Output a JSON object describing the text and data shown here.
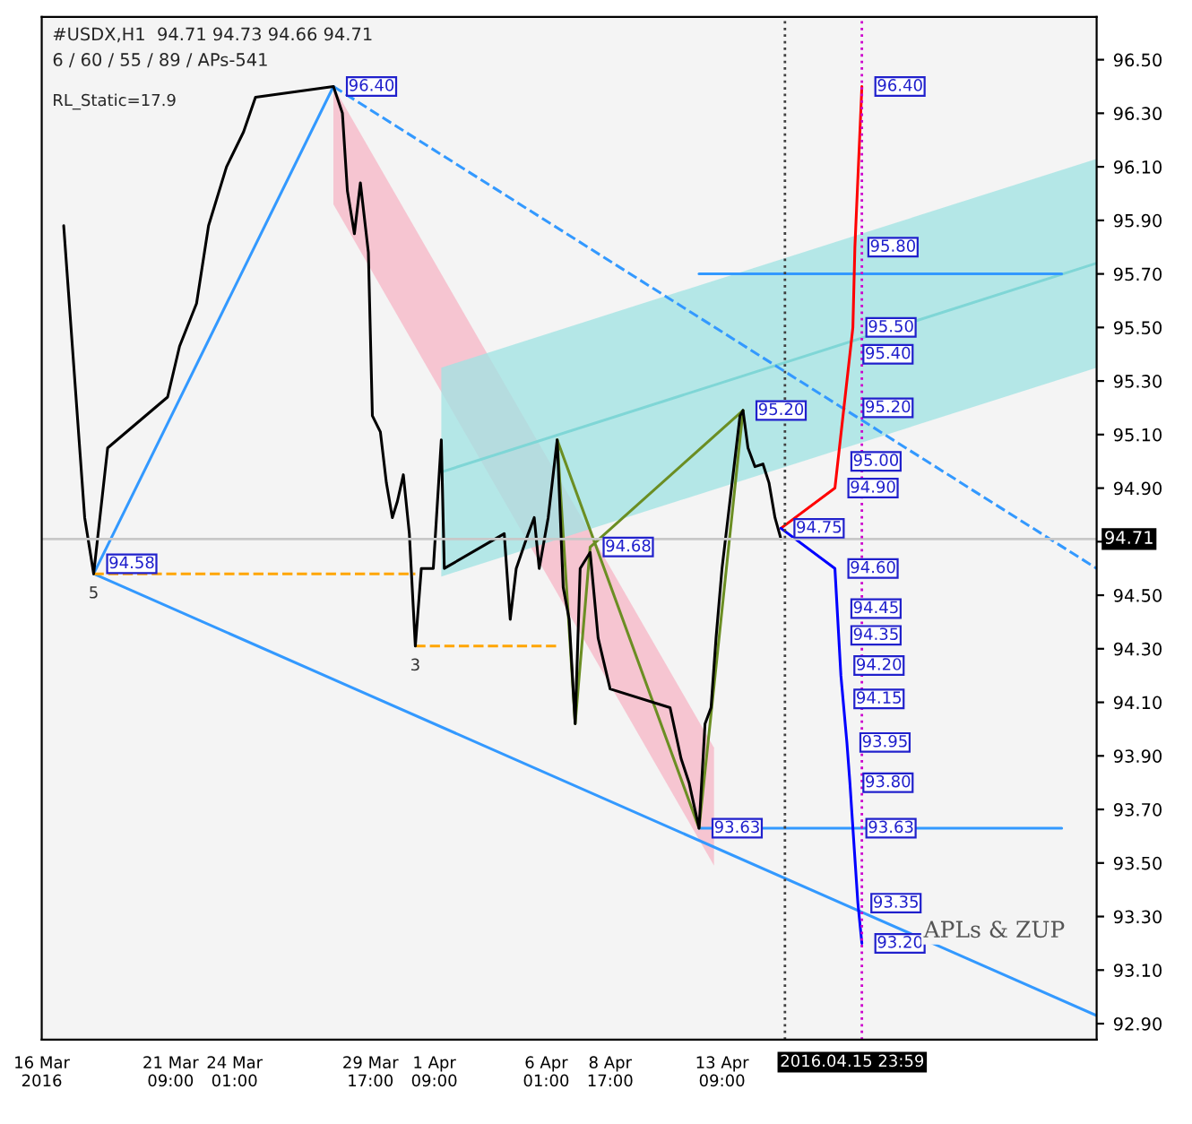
{
  "chart_data": {
    "type": "line",
    "title": "#USDX,H1  94.71 94.73 94.66 94.71",
    "subtitle": "6 / 60 / 55 / 89 / APs-541",
    "xlim": [
      "2016-03-16T00:00",
      "2016-04-29T00:00"
    ],
    "ylim": [
      92.84,
      96.66
    ],
    "xticks": [
      {
        "value": "2016-03-16T00:00",
        "label": "16 Mar 2016"
      },
      {
        "value": "2016-03-21T09:00",
        "label": "21 Mar 09:00"
      },
      {
        "value": "2016-03-24T01:00",
        "label": "24 Mar 01:00"
      },
      {
        "value": "2016-03-29T17:00",
        "label": "29 Mar 17:00"
      },
      {
        "value": "2016-04-01T09:00",
        "label": "1 Apr 09:00"
      },
      {
        "value": "2016-04-06T01:00",
        "label": "6 Apr 01:00"
      },
      {
        "value": "2016-04-08T17:00",
        "label": "8 Apr 17:00"
      },
      {
        "value": "2016-04-13T09:00",
        "label": "13 Apr 09:00"
      }
    ],
    "yticks": [
      {
        "value": 92.9,
        "label": "92.90"
      },
      {
        "value": 93.1,
        "label": "93.10"
      },
      {
        "value": 93.3,
        "label": "93.30"
      },
      {
        "value": 93.5,
        "label": "93.50"
      },
      {
        "value": 93.7,
        "label": "93.70"
      },
      {
        "value": 93.9,
        "label": "93.90"
      },
      {
        "value": 94.1,
        "label": "94.10"
      },
      {
        "value": 94.3,
        "label": "94.30"
      },
      {
        "value": 94.5,
        "label": "94.50"
      },
      {
        "value": 94.7,
        "label": null
      },
      {
        "value": 94.9,
        "label": "94.90"
      },
      {
        "value": 95.1,
        "label": "95.10"
      },
      {
        "value": 95.3,
        "label": "95.30"
      },
      {
        "value": 95.5,
        "label": "95.50"
      },
      {
        "value": 95.7,
        "label": "95.70"
      },
      {
        "value": 95.9,
        "label": "95.90"
      },
      {
        "value": 96.1,
        "label": "96.10"
      },
      {
        "value": 96.3,
        "label": "96.30"
      },
      {
        "value": 96.5,
        "label": "96.50"
      }
    ],
    "series": [
      {
        "type": "area",
        "color": "#f7b6c6",
        "x": [
          "2016-03-28T04:00",
          "2016-04-13T01:00"
        ],
        "values": [
          null,
          null
        ],
        "lower": [
          95.96,
          93.49
        ],
        "upper": [
          96.4,
          93.93
        ]
      },
      {
        "type": "area",
        "color": "#9fe3e3",
        "x": [
          "2016-04-01T16:00",
          "2016-04-29T00:00"
        ],
        "values": [
          null,
          null
        ],
        "lower": [
          94.57,
          95.35
        ],
        "upper": [
          95.35,
          96.13
        ]
      },
      {
        "color": "#7fd6d6",
        "x": [
          "2016-04-01T16:00",
          "2016-04-29T00:00"
        ],
        "values": [
          94.96,
          95.74
        ]
      },
      {
        "color": "#3399ff",
        "x": [
          "2016-03-18T04:00",
          "2016-04-29T00:00"
        ],
        "values": [
          94.58,
          92.93
        ]
      },
      {
        "color": "#3399ff",
        "x": [
          "2016-03-18T04:00",
          "2016-03-28T04:00"
        ],
        "values": [
          94.58,
          96.4
        ]
      },
      {
        "color": "#3399ff",
        "line_style": "dashed",
        "x": [
          "2016-03-28T04:00",
          "2016-04-29T00:00"
        ],
        "values": [
          96.4,
          94.6
        ]
      },
      {
        "color": "#3399ff",
        "x": [
          "2016-04-12T10:00",
          "2016-04-27T13:00"
        ],
        "values": [
          95.7,
          95.7
        ]
      },
      {
        "color": "#3399ff",
        "x": [
          "2016-04-12T10:00",
          "2016-04-27T13:00"
        ],
        "values": [
          93.63,
          93.63
        ]
      },
      {
        "color": "#ffa500",
        "line_style": "dashed",
        "x": [
          "2016-03-18T04:00",
          "2016-03-31T14:00"
        ],
        "values": [
          94.58,
          94.58
        ]
      },
      {
        "color": "#ffa500",
        "line_style": "dashed",
        "x": [
          "2016-03-31T14:00",
          "2016-04-06T12:00"
        ],
        "values": [
          94.31,
          94.31
        ]
      },
      {
        "color": "#6b8e23",
        "x": [
          "2016-04-06T12:00",
          "2016-04-07T06:00",
          "2016-04-07T21:00",
          "2016-04-14T06:00"
        ],
        "values": [
          95.08,
          94.02,
          94.68,
          95.19
        ]
      },
      {
        "color": "#6b8e23",
        "x": [
          "2016-04-06T12:00",
          "2016-04-12T10:00",
          "2016-04-14T06:00"
        ],
        "values": [
          95.08,
          93.63,
          95.19
        ]
      },
      {
        "color": "#000000",
        "x": [
          "2016-03-16T22:00",
          "2016-03-17T19:00",
          "2016-03-18T04:00",
          "2016-03-18T18:00",
          "2016-03-21T06:00",
          "2016-03-21T18:00",
          "2016-03-22T11:00",
          "2016-03-22T23:00",
          "2016-03-23T17:00",
          "2016-03-24T10:00",
          "2016-03-24T22:00",
          "2016-03-28T04:00",
          "2016-03-28T13:00",
          "2016-03-28T18:00",
          "2016-03-29T01:00",
          "2016-03-29T07:00",
          "2016-03-29T15:00",
          "2016-03-29T19:00",
          "2016-03-30T03:00",
          "2016-03-30T09:00",
          "2016-03-30T15:00",
          "2016-03-30T20:00",
          "2016-03-31T02:00",
          "2016-03-31T08:00",
          "2016-03-31T14:00",
          "2016-03-31T20:00",
          "2016-04-01T08:00",
          "2016-04-01T16:00",
          "2016-04-01T19:00",
          "2016-04-04T07:00",
          "2016-04-04T13:00",
          "2016-04-04T19:00",
          "2016-04-05T07:00",
          "2016-04-05T13:00",
          "2016-04-05T18:00",
          "2016-04-06T03:00",
          "2016-04-06T12:00",
          "2016-04-06T18:00",
          "2016-04-07T00:00",
          "2016-04-07T06:00",
          "2016-04-07T11:00",
          "2016-04-07T21:00",
          "2016-04-08T05:00",
          "2016-04-08T17:00",
          "2016-04-11T05:00",
          "2016-04-11T16:00",
          "2016-04-12T00:00",
          "2016-04-12T10:00",
          "2016-04-12T16:00",
          "2016-04-12T22:00",
          "2016-04-13T03:00",
          "2016-04-13T09:00",
          "2016-04-13T15:00",
          "2016-04-13T21:00",
          "2016-04-14T03:00",
          "2016-04-14T06:00",
          "2016-04-14T11:00",
          "2016-04-14T18:00",
          "2016-04-15T02:00",
          "2016-04-15T08:00",
          "2016-04-15T14:00",
          "2016-04-15T20:00"
        ],
        "values": [
          95.88,
          94.79,
          94.58,
          95.05,
          95.24,
          95.43,
          95.59,
          95.88,
          96.1,
          96.23,
          96.36,
          96.4,
          96.3,
          96.01,
          95.85,
          96.04,
          95.78,
          95.17,
          95.11,
          94.92,
          94.79,
          94.85,
          94.95,
          94.73,
          94.31,
          94.6,
          94.6,
          95.08,
          94.6,
          94.73,
          94.41,
          94.6,
          94.73,
          94.79,
          94.6,
          94.79,
          95.08,
          94.53,
          94.41,
          94.02,
          94.6,
          94.66,
          94.34,
          94.15,
          94.08,
          93.89,
          93.8,
          93.63,
          94.02,
          94.08,
          94.34,
          94.6,
          94.79,
          94.98,
          95.17,
          95.19,
          95.05,
          94.98,
          94.99,
          94.92,
          94.79,
          94.71
        ]
      },
      {
        "color": "#ff0000",
        "x": [
          "2016-04-15T20:00",
          "2016-04-18T02:00",
          "2016-04-18T05:00",
          "2016-04-18T17:00",
          "2016-04-18T20:00",
          "2016-04-18T22:00",
          "2016-04-19T05:00"
        ],
        "values": [
          94.75,
          94.9,
          95.0,
          95.4,
          95.5,
          95.8,
          96.4
        ]
      },
      {
        "color": "#0000ff",
        "x": [
          "2016-04-15T20:00",
          "2016-04-18T02:00",
          "2016-04-18T08:00",
          "2016-04-18T14:00",
          "2016-04-18T17:00",
          "2016-04-18T20:00",
          "2016-04-19T01:00",
          "2016-04-19T05:00"
        ],
        "values": [
          94.75,
          94.6,
          94.2,
          93.95,
          93.8,
          93.63,
          93.35,
          93.2
        ]
      }
    ],
    "ref_lines": [
      {
        "axis": "y",
        "value": 94.71,
        "label": "94.71",
        "color": "#c8c8c8"
      },
      {
        "axis": "x",
        "value": "2016-04-15T23:59",
        "label": "2016.04.15 23:59",
        "color": "#404040",
        "line_style": "dotted"
      },
      {
        "axis": "x",
        "value": "2016-04-19T05:00",
        "label": null,
        "color": "#cc00cc",
        "line_style": "dotted"
      }
    ],
    "annotations": [
      "RL_Static=17.9",
      "APLs & ZUP",
      {
        "text": "96.40",
        "x": "2016-03-28T04:00",
        "y": 96.4
      },
      {
        "text": "94.58",
        "x": "2016-03-18T04:00",
        "y": 94.58
      },
      {
        "text": "5",
        "x": "2016-03-18T04:00",
        "y": 94.58
      },
      {
        "text": "3",
        "x": "2016-03-31T14:00",
        "y": 94.31
      },
      {
        "text": "94.68",
        "x": "2016-04-07T21:00",
        "y": 94.68
      },
      {
        "text": "95.20",
        "x": "2016-04-14T06:00",
        "y": 95.19
      },
      {
        "text": "93.63",
        "x": "2016-04-12T10:00",
        "y": 93.63
      },
      {
        "text": "96.40",
        "x": "2016-04-19T05:00",
        "y": 96.4
      },
      {
        "text": "95.80",
        "x": "2016-04-18T22:00",
        "y": 95.8
      },
      {
        "text": "95.50",
        "x": "2016-04-18T20:00",
        "y": 95.5
      },
      {
        "text": "95.40",
        "x": "2016-04-18T17:00",
        "y": 95.4
      },
      {
        "text": "95.20",
        "x": "2016-04-18T17:00",
        "y": 95.2
      },
      {
        "text": "95.00",
        "x": "2016-04-18T05:00",
        "y": 95.0
      },
      {
        "text": "94.90",
        "x": "2016-04-18T02:00",
        "y": 94.9
      },
      {
        "text": "94.75",
        "x": "2016-04-15T20:00",
        "y": 94.75
      },
      {
        "text": "94.60",
        "x": "2016-04-18T02:00",
        "y": 94.6
      },
      {
        "text": "94.45",
        "x": "2016-04-18T05:00",
        "y": 94.45
      },
      {
        "text": "94.35",
        "x": "2016-04-18T05:00",
        "y": 94.35
      },
      {
        "text": "94.20",
        "x": "2016-04-18T08:00",
        "y": 94.2
      },
      {
        "text": "94.15",
        "x": "2016-04-18T08:00",
        "y": 94.15
      },
      {
        "text": "93.95",
        "x": "2016-04-18T14:00",
        "y": 93.95
      },
      {
        "text": "93.80",
        "x": "2016-04-18T17:00",
        "y": 93.8
      },
      {
        "text": "93.63",
        "x": "2016-04-18T20:00",
        "y": 93.63
      },
      {
        "text": "93.35",
        "x": "2016-04-19T01:00",
        "y": 93.35
      },
      {
        "text": "93.20",
        "x": "2016-04-19T05:00",
        "y": 93.2
      }
    ],
    "grid": false,
    "legend": false
  }
}
